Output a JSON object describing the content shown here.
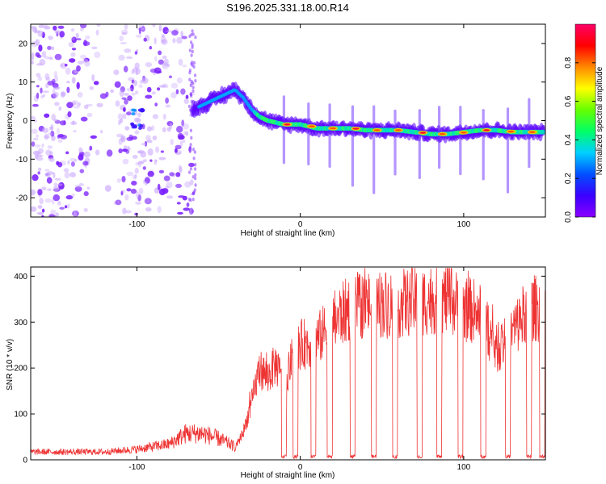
{
  "title": "S196.2025.331.18.00.R14",
  "chart_data": [
    {
      "type": "heatmap",
      "xlabel": "Height of straight line (km)",
      "ylabel": "Frequency (Hz)",
      "xlim": [
        -165,
        150
      ],
      "ylim": [
        -25,
        25
      ],
      "xticks": [
        -100,
        0,
        100
      ],
      "yticks": [
        -20,
        -10,
        0,
        10,
        20
      ],
      "xtick_labels": [
        "-100",
        "0",
        "100"
      ],
      "ytick_labels": [
        "-20",
        "-10",
        "0",
        "10",
        "20"
      ],
      "colorbar": {
        "label": "Normalized spectral amplitude",
        "range": [
          0,
          1
        ],
        "ticks": [
          0,
          0.2,
          0.4,
          0.6,
          0.8
        ],
        "tick_labels": [
          "0.0",
          "0.2",
          "0.4",
          "0.6",
          "0.8"
        ],
        "colormap": [
          "#8a00ff",
          "#3a00ff",
          "#0050ff",
          "#00d0ff",
          "#00ff66",
          "#66ff00",
          "#ffff00",
          "#ff8800",
          "#ff0000",
          "#ff0066"
        ]
      },
      "ridge": {
        "description_points_x": [
          -65,
          -55,
          -45,
          -40,
          -35,
          -30,
          -25,
          -20,
          -10,
          0,
          10,
          20,
          30,
          40,
          50,
          60,
          70,
          80,
          90,
          100,
          110,
          120,
          130,
          140,
          148
        ],
        "description_points_y": [
          3,
          5,
          7,
          8,
          6,
          3,
          1,
          0,
          -1,
          -1,
          -2,
          -2,
          -2,
          -2.5,
          -2.5,
          -2.5,
          -3,
          -3.5,
          -3.5,
          -3,
          -2.5,
          -2.5,
          -3,
          -3,
          -3
        ]
      },
      "hotspots_x": [
        -10,
        5,
        18,
        32,
        45,
        58,
        73,
        85,
        98,
        112,
        127,
        140
      ]
    },
    {
      "type": "line",
      "xlabel": "Height of straight line (km)",
      "ylabel": "SNR (10 * v/v)",
      "xlim": [
        -165,
        150
      ],
      "ylim": [
        0,
        420
      ],
      "xticks": [
        -100,
        0,
        100
      ],
      "yticks": [
        0,
        100,
        200,
        300,
        400
      ],
      "xtick_labels": [
        "-100",
        "0",
        "100"
      ],
      "ytick_labels": [
        "0",
        "100",
        "200",
        "300",
        "400"
      ],
      "series": [
        {
          "name": "SNR",
          "color": "#ee3333",
          "envelope_x": [
            -165,
            -120,
            -100,
            -80,
            -70,
            -60,
            -50,
            -40,
            -35,
            -30,
            -25,
            -20,
            -15,
            -10,
            -5,
            0,
            10,
            20,
            30,
            40,
            50,
            60,
            70,
            80,
            90,
            100,
            110,
            120,
            130,
            140,
            150
          ],
          "envelope_y": [
            15,
            15,
            20,
            30,
            50,
            50,
            40,
            25,
            60,
            120,
            200,
            180,
            210,
            160,
            220,
            250,
            260,
            300,
            330,
            340,
            340,
            340,
            345,
            350,
            350,
            330,
            320,
            240,
            280,
            330,
            330
          ],
          "dropouts_x": [
            -10,
            -3,
            8,
            18,
            32,
            45,
            58,
            73,
            85,
            98,
            112,
            127,
            140,
            148
          ]
        }
      ]
    }
  ]
}
